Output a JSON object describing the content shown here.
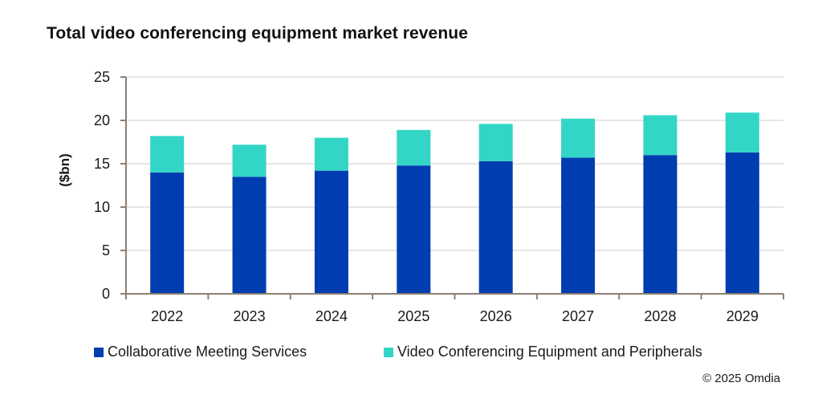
{
  "chart_data": {
    "type": "bar",
    "stacked": true,
    "title": "Total video conferencing equipment market revenue",
    "xlabel": "",
    "ylabel": "($bn)",
    "ylim": [
      0,
      25
    ],
    "yticks": [
      0,
      5,
      10,
      15,
      20,
      25
    ],
    "grid": true,
    "legend_position": "bottom",
    "categories": [
      "2022",
      "2023",
      "2024",
      "2025",
      "2026",
      "2027",
      "2028",
      "2029"
    ],
    "series": [
      {
        "name": "Collaborative Meeting Services",
        "color": "#003DB0",
        "values": [
          14.0,
          13.5,
          14.2,
          14.8,
          15.3,
          15.7,
          16.0,
          16.3
        ]
      },
      {
        "name": "Video Conferencing Equipment and Peripherals",
        "color": "#33D6C6",
        "values": [
          4.2,
          3.7,
          3.8,
          4.1,
          4.3,
          4.5,
          4.6,
          4.6
        ]
      }
    ],
    "source": "© 2025 Omdia"
  }
}
